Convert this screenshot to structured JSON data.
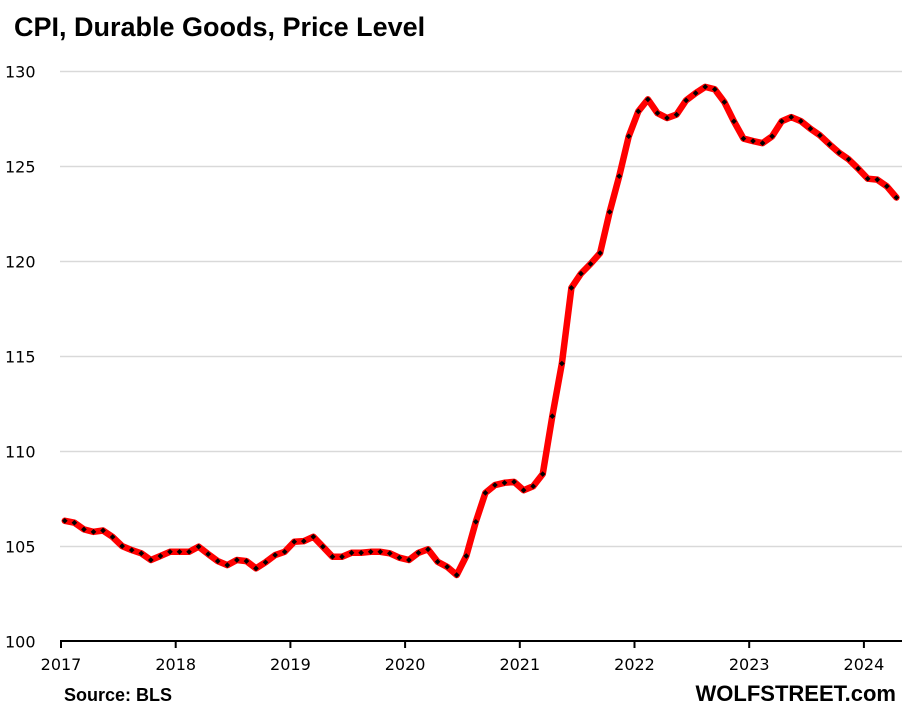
{
  "chart_data": {
    "type": "line",
    "title": "CPI, Durable Goods, Price Level",
    "xlabel": "",
    "ylabel": "",
    "source": "Source: BLS",
    "brand": "WOLFSTREET.com",
    "ylim": [
      100,
      130
    ],
    "yticks": [
      "100",
      "105",
      "110",
      "115",
      "120",
      "125",
      "130"
    ],
    "ytick_values": [
      100,
      105,
      110,
      115,
      120,
      125,
      130
    ],
    "xticks": [
      "2017",
      "2018",
      "2019",
      "2020",
      "2021",
      "2022",
      "2023",
      "2024"
    ],
    "x_start": "2017-01",
    "x_frequency": "monthly",
    "grid": true,
    "colors": {
      "line": "#ff0000",
      "marker": "#000000",
      "grid": "#d9d9d9",
      "axis": "#000000"
    },
    "series": [
      {
        "name": "CPI Durable Goods",
        "values": [
          106.32,
          106.22,
          105.87,
          105.74,
          105.81,
          105.47,
          104.99,
          104.78,
          104.61,
          104.26,
          104.47,
          104.69,
          104.69,
          104.69,
          104.96,
          104.57,
          104.2,
          103.99,
          104.26,
          104.2,
          103.82,
          104.14,
          104.52,
          104.69,
          105.22,
          105.25,
          105.48,
          104.96,
          104.43,
          104.43,
          104.64,
          104.64,
          104.69,
          104.69,
          104.61,
          104.38,
          104.26,
          104.64,
          104.82,
          104.17,
          103.9,
          103.47,
          104.47,
          106.27,
          107.79,
          108.2,
          108.32,
          108.37,
          107.93,
          108.14,
          108.78,
          111.82,
          114.59,
          118.57,
          119.32,
          119.83,
          120.4,
          122.56,
          124.44,
          126.54,
          127.85,
          128.48,
          127.76,
          127.5,
          127.68,
          128.43,
          128.81,
          129.14,
          129.01,
          128.34,
          127.33,
          126.42,
          126.29,
          126.18,
          126.54,
          127.33,
          127.55,
          127.34,
          126.94,
          126.59,
          126.12,
          125.68,
          125.33,
          124.84,
          124.31,
          124.26,
          123.91,
          123.32
        ]
      }
    ]
  }
}
